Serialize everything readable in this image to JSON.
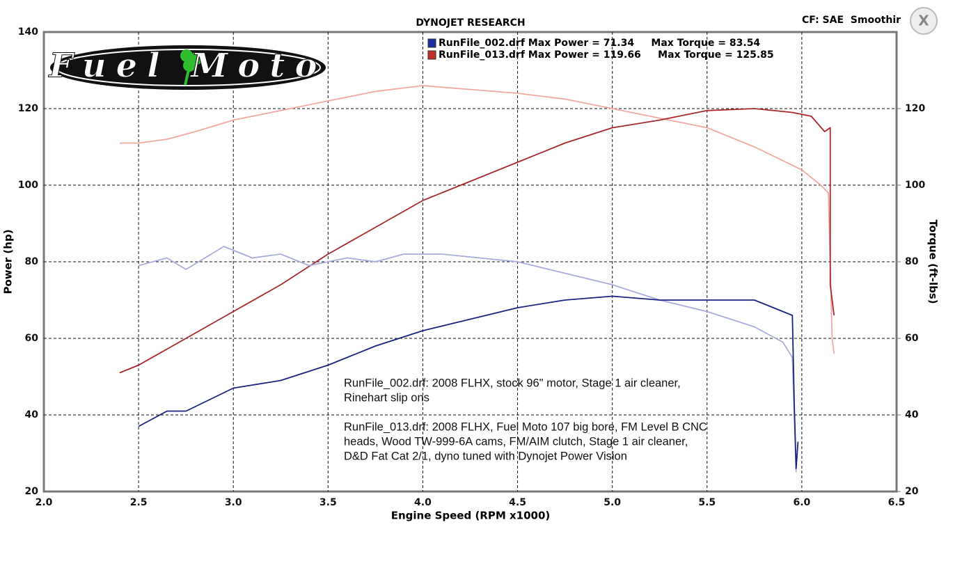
{
  "logo": {
    "text": "Fuel Moto"
  },
  "toolbar": {
    "settings": "CF: SAE  Smoothir",
    "close": "X"
  },
  "chart_data": {
    "type": "line",
    "title": "DYNOJET RESEARCH",
    "x_label": "Engine Speed (RPM x1000)",
    "y_label": "Power (hp)",
    "y2_label": "Torque (ft-lbs)",
    "xlim": [
      2.0,
      6.5
    ],
    "xticks": [
      {
        "value": 2,
        "label": "2.0"
      },
      2.5,
      {
        "value": 3,
        "label": "3.0"
      },
      3.5,
      {
        "value": 4,
        "label": "4.0"
      },
      4.5,
      {
        "value": 5,
        "label": "5.0"
      },
      5.5,
      {
        "value": 6,
        "label": "6.0"
      },
      6.5
    ],
    "ylim": [
      20,
      140
    ],
    "yticks": [
      20,
      40,
      60,
      80,
      100,
      120,
      140
    ],
    "y2lim": [
      20,
      140
    ],
    "y2ticks": [
      20,
      40,
      60,
      80,
      100,
      120
    ],
    "grid": true,
    "legend": [
      {
        "label": "RunFile_002.drf Max Power = 71.34     Max Torque = 83.54",
        "color": "#1a2fa0"
      },
      {
        "label": "RunFile_013.drf Max Power = 119.66     Max Torque = 125.85",
        "color": "#c0302a"
      }
    ],
    "series": [
      {
        "color": "#f0a8a0",
        "axis": "y2",
        "x": [
          2.4,
          2.5,
          2.65,
          2.8,
          3.0,
          3.25,
          3.5,
          3.75,
          4.0,
          4.25,
          4.5,
          4.75,
          5.0,
          5.25,
          5.5,
          5.75,
          6.0,
          6.1,
          6.14,
          6.15,
          6.16,
          6.17
        ],
        "values": [
          111,
          111,
          112,
          114,
          117,
          119.5,
          122,
          124.5,
          126,
          125,
          124,
          122.5,
          120,
          117.5,
          115,
          110,
          104,
          100,
          98,
          80,
          60,
          56
        ]
      },
      {
        "color": "#a8282a",
        "axis": "y",
        "x": [
          2.4,
          2.5,
          2.75,
          3.0,
          3.25,
          3.5,
          3.75,
          4.0,
          4.25,
          4.5,
          4.75,
          5.0,
          5.25,
          5.5,
          5.75,
          5.95,
          6.05,
          6.12,
          6.15,
          6.15,
          6.17
        ],
        "values": [
          51,
          53,
          60,
          67,
          74,
          82,
          89,
          96,
          101,
          106,
          111,
          115,
          117,
          119.5,
          120,
          119,
          118,
          114,
          115,
          74,
          66
        ]
      },
      {
        "color": "#a8acdc",
        "axis": "y2",
        "x": [
          2.5,
          2.65,
          2.75,
          2.95,
          3.1,
          3.25,
          3.4,
          3.6,
          3.75,
          3.9,
          4.1,
          4.3,
          4.5,
          4.75,
          5.0,
          5.25,
          5.5,
          5.75,
          5.9,
          5.95,
          5.96,
          5.97
        ],
        "values": [
          79,
          81,
          78,
          84,
          81,
          82,
          79,
          81,
          80,
          82,
          82,
          81,
          80,
          77,
          74,
          70,
          67,
          63,
          59,
          55,
          40,
          25
        ]
      },
      {
        "color": "#1a237e",
        "axis": "y",
        "x": [
          2.5,
          2.65,
          2.75,
          3.0,
          3.25,
          3.5,
          3.75,
          4.0,
          4.25,
          4.5,
          4.75,
          5.0,
          5.25,
          5.5,
          5.75,
          5.9,
          5.95,
          5.96,
          5.97,
          5.98
        ],
        "values": [
          37,
          41,
          41,
          47,
          49,
          53,
          58,
          62,
          65,
          68,
          70,
          71,
          70,
          70,
          70,
          67,
          66,
          43,
          26,
          33
        ]
      }
    ],
    "notes": [
      [
        "RunFile_002.drf: 2008 FLHX, stock 96\" motor, Stage 1 air cleaner,",
        "Rinehart slip ons"
      ],
      [
        "RunFile_013.drf: 2008 FLHX, Fuel Moto 107 big bore, FM Level B CNC",
        "heads, Wood TW-999-6A cams, FM/AIM clutch, Stage 1 air cleaner,",
        "D&D Fat Cat 2/1, dyno tuned with Dynojet Power Vision"
      ]
    ]
  }
}
